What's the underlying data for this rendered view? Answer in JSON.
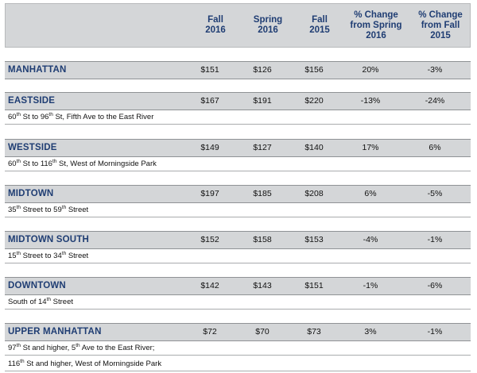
{
  "header": {
    "columns": [
      {
        "label": "Fall\n2016"
      },
      {
        "label": "Spring\n2016"
      },
      {
        "label": "Fall\n2015"
      },
      {
        "label": "% Change\nfrom Spring\n2016"
      },
      {
        "label": "% Change\nfrom Fall\n2015"
      }
    ]
  },
  "regions": [
    {
      "name": "MANHATTAN",
      "values": [
        "$151",
        "$126",
        "$156",
        "20%",
        "-3%"
      ],
      "desc": []
    },
    {
      "name": "EASTSIDE",
      "values": [
        "$167",
        "$191",
        "$220",
        "-13%",
        "-24%"
      ],
      "desc": [
        [
          {
            "t": "60"
          },
          {
            "s": "th"
          },
          {
            "t": " St to 96"
          },
          {
            "s": "th"
          },
          {
            "t": " St, Fifth Ave to the East River"
          }
        ]
      ]
    },
    {
      "name": "WESTSIDE",
      "values": [
        "$149",
        "$127",
        "$140",
        "17%",
        "6%"
      ],
      "desc": [
        [
          {
            "t": "60"
          },
          {
            "s": "th"
          },
          {
            "t": " St to 116"
          },
          {
            "s": "th"
          },
          {
            "t": " St, West of Morningside Park"
          }
        ]
      ]
    },
    {
      "name": "MIDTOWN",
      "values": [
        "$197",
        "$185",
        "$208",
        "6%",
        "-5%"
      ],
      "desc": [
        [
          {
            "t": "35"
          },
          {
            "s": "th"
          },
          {
            "t": " Street to 59"
          },
          {
            "s": "th"
          },
          {
            "t": " Street"
          }
        ]
      ]
    },
    {
      "name": "MIDTOWN SOUTH",
      "values": [
        "$152",
        "$158",
        "$153",
        "-4%",
        "-1%"
      ],
      "desc": [
        [
          {
            "t": "15"
          },
          {
            "s": "th"
          },
          {
            "t": " Street to 34"
          },
          {
            "s": "th"
          },
          {
            "t": " Street"
          }
        ]
      ]
    },
    {
      "name": "DOWNTOWN",
      "values": [
        "$142",
        "$143",
        "$151",
        "-1%",
        "-6%"
      ],
      "desc": [
        [
          {
            "t": "South of 14"
          },
          {
            "s": "th"
          },
          {
            "t": " Street"
          }
        ]
      ]
    },
    {
      "name": "UPPER MANHATTAN",
      "values": [
        "$72",
        "$70",
        "$73",
        "3%",
        "-1%"
      ],
      "desc": [
        [
          {
            "t": "97"
          },
          {
            "s": "th"
          },
          {
            "t": " St and higher, 5"
          },
          {
            "s": "th"
          },
          {
            "t": " Ave to the East River;"
          }
        ],
        [
          {
            "t": "116"
          },
          {
            "s": "th"
          },
          {
            "t": " St and higher, West of Morningside Park"
          }
        ]
      ]
    }
  ]
}
